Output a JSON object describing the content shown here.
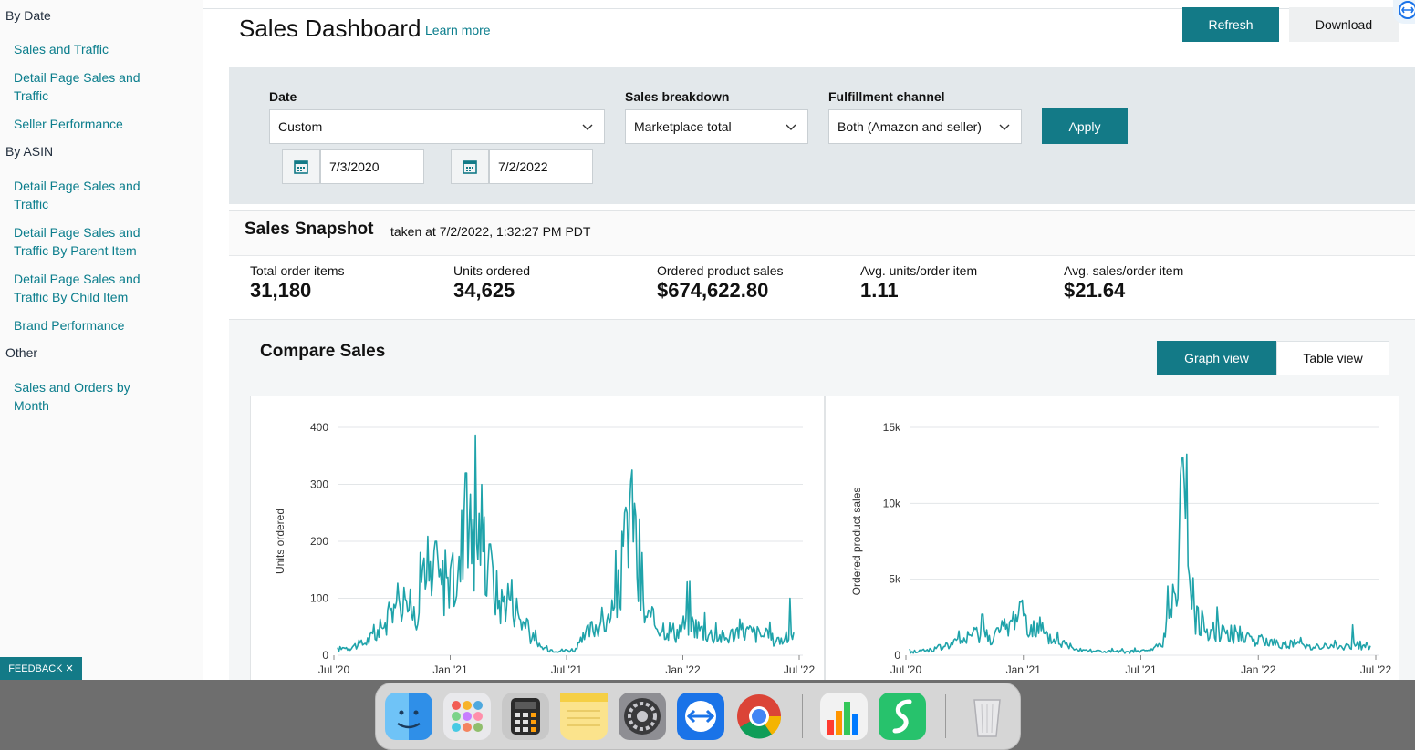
{
  "sidebar": {
    "sections": [
      {
        "title": "By Date",
        "links": [
          "Sales and Traffic",
          "Detail Page Sales and Traffic",
          "Seller Performance"
        ]
      },
      {
        "title": "By ASIN",
        "links": [
          "Detail Page Sales and Traffic",
          "Detail Page Sales and Traffic By Parent Item",
          "Detail Page Sales and Traffic By Child Item",
          "Brand Performance"
        ]
      },
      {
        "title": "Other",
        "links": [
          "Sales and Orders by Month"
        ]
      }
    ]
  },
  "header": {
    "title": "Sales Dashboard",
    "learn_more": "Learn more",
    "refresh_label": "Refresh",
    "download_label": "Download"
  },
  "filters": {
    "date_label": "Date",
    "date_value": "Custom",
    "start_date": "7/3/2020",
    "end_date": "7/2/2022",
    "breakdown_label": "Sales breakdown",
    "breakdown_value": "Marketplace total",
    "fulfillment_label": "Fulfillment channel",
    "fulfillment_value": "Both (Amazon and seller)",
    "apply_label": "Apply"
  },
  "snapshot": {
    "title": "Sales Snapshot",
    "taken_at": "taken at 7/2/2022, 1:32:27 PM PDT",
    "metrics": [
      {
        "label": "Total order items",
        "value": "31,180"
      },
      {
        "label": "Units ordered",
        "value": "34,625"
      },
      {
        "label": "Ordered product sales",
        "value": "$674,622.80"
      },
      {
        "label": "Avg. units/order item",
        "value": "1.11"
      },
      {
        "label": "Avg. sales/order item",
        "value": "$21.64"
      }
    ]
  },
  "compare": {
    "title": "Compare Sales",
    "graph_view": "Graph view",
    "table_view": "Table view"
  },
  "feedback_label": "FEEDBACK ✕",
  "colors": {
    "accent": "#137a87",
    "link": "#0a7d8c",
    "line": "#1fa3aa"
  },
  "dock": {
    "icons": [
      "finder-icon",
      "launchpad-icon",
      "calculator-icon",
      "notes-icon",
      "system-preferences-icon",
      "teamviewer-icon",
      "chrome-icon",
      "charts-app-icon",
      "green-app-icon",
      "trash-icon"
    ]
  },
  "chart_data": [
    {
      "type": "line",
      "title": "",
      "xlabel": "",
      "ylabel": "Units ordered",
      "x_ticks": [
        "Jul '20",
        "Jan '21",
        "Jul '21",
        "Jan '22",
        "Jul '22"
      ],
      "y_ticks": [
        "0",
        "100",
        "200",
        "300",
        "400"
      ],
      "ylim": [
        0,
        400
      ],
      "grid": true,
      "series": [
        {
          "x_start": "2020-07-03",
          "x_end": "2022-07-02",
          "anchors": [
            [
              0,
              10
            ],
            [
              20,
              15
            ],
            [
              40,
              20
            ],
            [
              60,
              35
            ],
            [
              80,
              60
            ],
            [
              100,
              110
            ],
            [
              110,
              90
            ],
            [
              125,
              70
            ],
            [
              140,
              190
            ],
            [
              150,
              110
            ],
            [
              165,
              130
            ],
            [
              180,
              120
            ],
            [
              195,
              140
            ],
            [
              205,
              320
            ],
            [
              215,
              170
            ],
            [
              230,
              230
            ],
            [
              240,
              150
            ],
            [
              260,
              90
            ],
            [
              275,
              110
            ],
            [
              290,
              70
            ],
            [
              305,
              40
            ],
            [
              320,
              15
            ],
            [
              340,
              10
            ],
            [
              360,
              8
            ],
            [
              380,
              10
            ],
            [
              400,
              40
            ],
            [
              420,
              60
            ],
            [
              440,
              55
            ],
            [
              450,
              120
            ],
            [
              460,
              200
            ],
            [
              470,
              320
            ],
            [
              480,
              120
            ],
            [
              490,
              70
            ],
            [
              500,
              60
            ],
            [
              520,
              50
            ],
            [
              540,
              40
            ],
            [
              560,
              60
            ],
            [
              580,
              45
            ],
            [
              600,
              35
            ],
            [
              620,
              30
            ],
            [
              640,
              45
            ],
            [
              660,
              40
            ],
            [
              680,
              35
            ],
            [
              700,
              25
            ],
            [
              720,
              30
            ],
            [
              728,
              30
            ]
          ],
          "spikes": [
            [
              205,
              320
            ],
            [
              470,
              325
            ],
            [
              462,
              250
            ],
            [
              157,
              200
            ],
            [
              243,
              195
            ],
            [
              722,
              100
            ],
            [
              142,
              130
            ],
            [
              448,
              150
            ]
          ]
        }
      ]
    },
    {
      "type": "line",
      "title": "",
      "xlabel": "",
      "ylabel": "Ordered product sales",
      "x_ticks": [
        "Jul '20",
        "Jan '21",
        "Jul '21",
        "Jan '22",
        "Jul '22"
      ],
      "y_ticks": [
        "0",
        "5k",
        "10k",
        "15k"
      ],
      "ylim": [
        0,
        15000
      ],
      "grid": true,
      "series": [
        {
          "x_start": "2020-07-03",
          "x_end": "2022-07-02",
          "anchors": [
            [
              0,
              200
            ],
            [
              40,
              400
            ],
            [
              80,
              900
            ],
            [
              110,
              1500
            ],
            [
              130,
              1200
            ],
            [
              160,
              2000
            ],
            [
              175,
              3100
            ],
            [
              190,
              2000
            ],
            [
              210,
              1200
            ],
            [
              240,
              800
            ],
            [
              270,
              400
            ],
            [
              300,
              250
            ],
            [
              340,
              200
            ],
            [
              380,
              300
            ],
            [
              400,
              800
            ],
            [
              415,
              3000
            ],
            [
              425,
              7000
            ],
            [
              432,
              13000
            ],
            [
              440,
              5500
            ],
            [
              450,
              2500
            ],
            [
              470,
              1800
            ],
            [
              500,
              1500
            ],
            [
              530,
              1200
            ],
            [
              560,
              900
            ],
            [
              600,
              700
            ],
            [
              640,
              600
            ],
            [
              680,
              500
            ],
            [
              700,
              600
            ],
            [
              728,
              700
            ]
          ],
          "spikes": [
            [
              432,
              13000
            ],
            [
              436,
              9000
            ],
            [
              175,
              3500
            ],
            [
              115,
              2700
            ],
            [
              700,
              2000
            ]
          ]
        }
      ]
    }
  ]
}
